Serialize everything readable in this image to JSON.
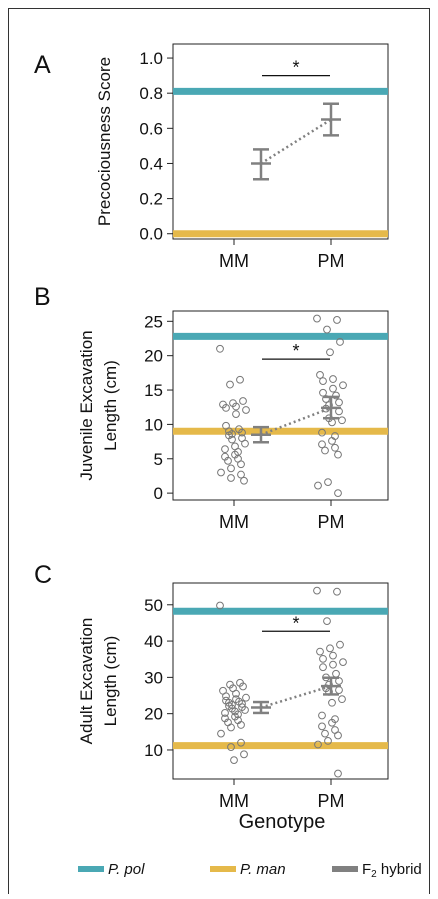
{
  "shared": {
    "xlabel": "Genotype",
    "categories": [
      "MM",
      "PM"
    ],
    "significance_marker": "*"
  },
  "legend": {
    "items": [
      {
        "label": "P. pol",
        "color": "#4aa8b4",
        "italic": true
      },
      {
        "label": "P. man",
        "color": "#e5b94a",
        "italic": true
      },
      {
        "label": "F",
        "sub": "2",
        "suffix": " hybrid",
        "color": "#808080",
        "italic": false
      }
    ]
  },
  "colors": {
    "p_pol": "#4aa8b4",
    "p_man": "#e5b94a",
    "hybrid": "#808080",
    "points": "#777777",
    "axis": "#222222"
  },
  "chart_data": [
    {
      "panel": "A",
      "type": "scatter",
      "ylabel_lines": [
        "Precociousness Score"
      ],
      "yticks": [
        0.0,
        0.2,
        0.4,
        0.6,
        0.8,
        1.0
      ],
      "ytick_labels": [
        "0.0",
        "0.2",
        "0.4",
        "0.6",
        "0.8",
        "1.0"
      ],
      "ylim": [
        -0.03,
        1.08
      ],
      "xlabel": "",
      "reference_lines": {
        "p_pol": 0.81,
        "p_man": 0.0
      },
      "means": [
        {
          "category": "MM",
          "mean": 0.4,
          "lower": 0.31,
          "upper": 0.48
        },
        {
          "category": "PM",
          "mean": 0.65,
          "lower": 0.56,
          "upper": 0.74
        }
      ],
      "points": [],
      "significance": {
        "y": 0.9,
        "label": "*"
      }
    },
    {
      "panel": "B",
      "type": "scatter",
      "ylabel_lines": [
        "Juvenile Excavation",
        "Length (cm)"
      ],
      "yticks": [
        0,
        5,
        10,
        15,
        20,
        25
      ],
      "ytick_labels": [
        "0",
        "5",
        "10",
        "15",
        "20",
        "25"
      ],
      "ylim": [
        -1,
        26.5
      ],
      "xlabel": "",
      "reference_lines": {
        "p_pol": 22.8,
        "p_man": 9.0
      },
      "means": [
        {
          "category": "MM",
          "mean": 8.5,
          "lower": 7.4,
          "upper": 9.6
        },
        {
          "category": "PM",
          "mean": 12.4,
          "lower": 10.9,
          "upper": 14.0
        }
      ],
      "points": [
        {
          "category": "MM",
          "values": [
            21.0,
            16.5,
            15.8,
            13.4,
            13.1,
            12.9,
            12.6,
            12.4,
            12.1,
            11.5,
            9.8,
            9.3,
            9.0,
            8.8,
            8.6,
            8.4,
            8.0,
            7.8,
            7.2,
            6.8,
            6.4,
            6.0,
            5.6,
            5.3,
            5.0,
            4.7,
            4.2,
            3.6,
            3.0,
            2.7,
            2.2,
            1.8
          ]
        },
        {
          "category": "PM",
          "values": [
            25.4,
            25.2,
            23.8,
            22.0,
            20.5,
            17.2,
            16.6,
            16.3,
            15.7,
            15.2,
            14.6,
            14.2,
            13.7,
            13.2,
            12.8,
            12.3,
            11.9,
            10.9,
            10.6,
            10.3,
            8.8,
            8.3,
            7.6,
            7.1,
            6.6,
            6.2,
            5.6,
            1.6,
            1.1,
            0.0
          ]
        }
      ],
      "significance": {
        "y": 19.5,
        "label": "*"
      }
    },
    {
      "panel": "C",
      "type": "scatter",
      "ylabel_lines": [
        "Adult Excavation",
        "Length (cm)"
      ],
      "yticks": [
        10,
        20,
        30,
        40,
        50
      ],
      "ytick_labels": [
        "10",
        "20",
        "30",
        "40",
        "50"
      ],
      "ylim": [
        2,
        56
      ],
      "xlabel": "Genotype",
      "reference_lines": {
        "p_pol": 48.2,
        "p_man": 11.2
      },
      "means": [
        {
          "category": "MM",
          "mean": 21.7,
          "lower": 20.2,
          "upper": 23.2
        },
        {
          "category": "PM",
          "mean": 27.6,
          "lower": 25.3,
          "upper": 29.9
        }
      ],
      "points": [
        {
          "category": "MM",
          "values": [
            49.8,
            28.5,
            28.0,
            27.5,
            27.0,
            26.3,
            25.5,
            24.8,
            24.4,
            24.0,
            23.6,
            23.3,
            23.0,
            22.7,
            22.4,
            22.1,
            21.8,
            21.4,
            21.0,
            20.6,
            20.2,
            19.8,
            19.2,
            18.7,
            18.2,
            17.6,
            16.9,
            16.2,
            14.5,
            12.0,
            10.8,
            8.8,
            7.2
          ]
        },
        {
          "category": "PM",
          "values": [
            53.9,
            53.6,
            45.5,
            39.0,
            38.0,
            37.1,
            36.0,
            35.1,
            34.2,
            33.5,
            32.8,
            31.0,
            30.0,
            29.0,
            28.0,
            27.0,
            26.5,
            26.0,
            24.0,
            23.0,
            19.5,
            18.5,
            17.5,
            16.5,
            15.5,
            14.5,
            14.0,
            12.5,
            11.5,
            3.5
          ]
        }
      ],
      "significance": {
        "y": 42.7,
        "label": "*"
      }
    }
  ]
}
